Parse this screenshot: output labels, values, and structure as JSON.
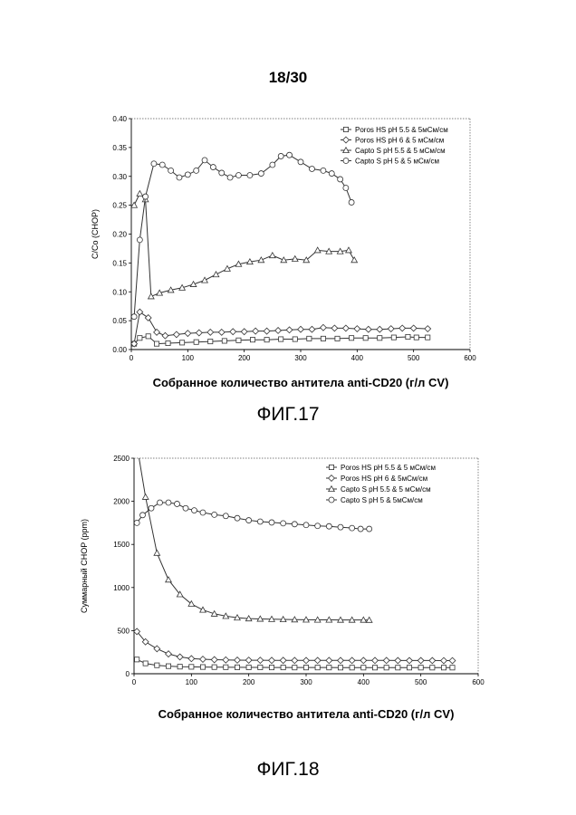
{
  "page": {
    "number": "18/30",
    "fig17_label": "ФИГ.17",
    "fig18_label": "ФИГ.18"
  },
  "chart_data": [
    {
      "type": "line",
      "xlabel": "Собранное количество антитела anti-CD20 (г/л CV)",
      "ylabel": "C/Co (CHOP)",
      "xlim": [
        0,
        600
      ],
      "ylim": [
        0,
        0.4
      ],
      "xticks": [
        0,
        100,
        200,
        300,
        400,
        500,
        600
      ],
      "yticks": [
        0.0,
        0.05,
        0.1,
        0.15,
        0.2,
        0.25,
        0.3,
        0.35,
        0.4
      ],
      "ytick_labels": [
        "0.00",
        "0.05",
        "0.10",
        "0.15",
        "0.20",
        "0.25",
        "0.30",
        "0.35",
        "0.40"
      ],
      "grid": false,
      "legend": "top-right",
      "series": [
        {
          "name": "Poros HS pH 5.5 & 5мСм/см",
          "marker": "square",
          "x": [
            5,
            15,
            30,
            45,
            65,
            90,
            115,
            140,
            165,
            190,
            215,
            240,
            265,
            290,
            315,
            340,
            365,
            390,
            415,
            440,
            465,
            490,
            505,
            525
          ],
          "y": [
            0.01,
            0.02,
            0.023,
            0.01,
            0.011,
            0.012,
            0.013,
            0.014,
            0.015,
            0.016,
            0.017,
            0.017,
            0.018,
            0.018,
            0.019,
            0.019,
            0.019,
            0.02,
            0.02,
            0.02,
            0.021,
            0.022,
            0.021,
            0.021
          ]
        },
        {
          "name": "Poros HS pH 6 & 5 мСм/см",
          "marker": "diamond",
          "x": [
            5,
            15,
            30,
            45,
            60,
            80,
            100,
            120,
            140,
            160,
            180,
            200,
            220,
            240,
            260,
            280,
            300,
            320,
            340,
            360,
            380,
            400,
            420,
            440,
            460,
            480,
            500,
            525
          ],
          "y": [
            0.01,
            0.065,
            0.055,
            0.03,
            0.024,
            0.026,
            0.028,
            0.029,
            0.03,
            0.03,
            0.031,
            0.031,
            0.032,
            0.032,
            0.033,
            0.034,
            0.035,
            0.035,
            0.038,
            0.037,
            0.037,
            0.036,
            0.035,
            0.035,
            0.036,
            0.037,
            0.037,
            0.036
          ]
        },
        {
          "name": "Capto S pH 5.5 & 5 мСм/см",
          "marker": "triangle",
          "x": [
            5,
            15,
            25,
            35,
            50,
            70,
            90,
            110,
            130,
            150,
            170,
            190,
            210,
            230,
            250,
            270,
            290,
            310,
            330,
            350,
            370,
            385,
            395
          ],
          "y": [
            0.25,
            0.27,
            0.26,
            0.092,
            0.098,
            0.103,
            0.107,
            0.113,
            0.12,
            0.13,
            0.14,
            0.148,
            0.152,
            0.155,
            0.163,
            0.155,
            0.157,
            0.155,
            0.172,
            0.17,
            0.17,
            0.172,
            0.155
          ]
        },
        {
          "name": "Capto S pH 5 & 5 мСм/см",
          "marker": "circle",
          "x": [
            5,
            15,
            25,
            40,
            55,
            70,
            85,
            100,
            115,
            130,
            145,
            160,
            175,
            190,
            210,
            230,
            250,
            265,
            280,
            300,
            320,
            340,
            355,
            370,
            380,
            390
          ],
          "y": [
            0.057,
            0.19,
            0.265,
            0.322,
            0.32,
            0.31,
            0.298,
            0.303,
            0.31,
            0.328,
            0.316,
            0.306,
            0.298,
            0.302,
            0.302,
            0.305,
            0.32,
            0.335,
            0.337,
            0.325,
            0.313,
            0.31,
            0.305,
            0.295,
            0.28,
            0.255
          ]
        }
      ]
    },
    {
      "type": "line",
      "xlabel": "Собранное количество антитела anti-CD20 (г/л CV)",
      "ylabel": "Суммарный CHOP (ppm)",
      "xlim": [
        0,
        600
      ],
      "ylim": [
        0,
        2500
      ],
      "xticks": [
        0,
        100,
        200,
        300,
        400,
        500,
        600
      ],
      "yticks": [
        0,
        500,
        1000,
        1500,
        2000,
        2500
      ],
      "ytick_labels": [
        "0",
        "500",
        "1000",
        "1500",
        "2000",
        "2500"
      ],
      "grid": false,
      "legend": "top-right",
      "series": [
        {
          "name": "Poros HS pH 5.5 & 5 мСм/см",
          "marker": "square",
          "x": [
            5,
            20,
            40,
            60,
            80,
            100,
            120,
            140,
            160,
            180,
            200,
            220,
            240,
            260,
            280,
            300,
            320,
            340,
            360,
            380,
            400,
            420,
            440,
            460,
            480,
            500,
            520,
            540,
            555
          ],
          "y": [
            165,
            120,
            98,
            88,
            82,
            80,
            78,
            77,
            76,
            75,
            74,
            74,
            73,
            73,
            72,
            72,
            72,
            72,
            71,
            71,
            71,
            71,
            71,
            71,
            71,
            71,
            71,
            71,
            71
          ]
        },
        {
          "name": "Poros HS pH 6 & 5мСм/см",
          "marker": "diamond",
          "x": [
            5,
            20,
            40,
            60,
            80,
            100,
            120,
            140,
            160,
            180,
            200,
            220,
            240,
            260,
            280,
            300,
            320,
            340,
            360,
            380,
            400,
            420,
            440,
            460,
            480,
            500,
            520,
            540,
            555
          ],
          "y": [
            490,
            370,
            290,
            230,
            195,
            175,
            168,
            163,
            160,
            158,
            157,
            156,
            155,
            155,
            154,
            154,
            154,
            154,
            154,
            154,
            154,
            154,
            154,
            153,
            153,
            153,
            153,
            152,
            152
          ]
        },
        {
          "name": "Capto S pH 5.5 & 5 мСм/см",
          "marker": "triangle",
          "x": [
            5,
            20,
            40,
            60,
            80,
            100,
            120,
            140,
            160,
            180,
            200,
            220,
            240,
            260,
            280,
            300,
            320,
            340,
            360,
            380,
            400,
            410
          ],
          "y": [
            2650,
            2050,
            1400,
            1090,
            920,
            810,
            740,
            695,
            668,
            650,
            640,
            636,
            633,
            630,
            628,
            626,
            625,
            625,
            624,
            624,
            624,
            623
          ]
        },
        {
          "name": "Capto S pH 5 & 5мСм/см",
          "marker": "circle",
          "x": [
            5,
            15,
            30,
            45,
            60,
            75,
            90,
            105,
            120,
            140,
            160,
            180,
            200,
            220,
            240,
            260,
            280,
            300,
            320,
            340,
            360,
            380,
            395,
            410
          ],
          "y": [
            1750,
            1840,
            1920,
            1985,
            1985,
            1970,
            1920,
            1895,
            1870,
            1845,
            1830,
            1805,
            1780,
            1765,
            1755,
            1745,
            1735,
            1725,
            1715,
            1710,
            1700,
            1690,
            1680,
            1680
          ]
        }
      ]
    }
  ]
}
